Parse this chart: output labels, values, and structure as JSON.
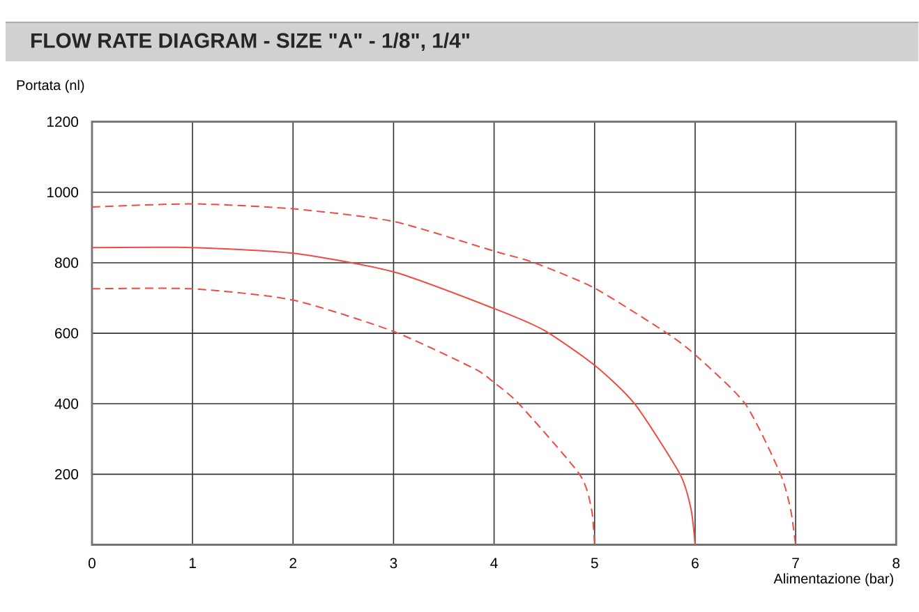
{
  "chart_data": {
    "type": "line",
    "title": "FLOW RATE DIAGRAM - SIZE \"A\" - 1/8\", 1/4\"",
    "xlabel": "Alimentazione (bar)",
    "ylabel": "Portata (nl)",
    "xlim": [
      0,
      8
    ],
    "ylim": [
      0,
      1200
    ],
    "xticks": [
      0,
      1,
      2,
      3,
      4,
      5,
      6,
      7,
      8
    ],
    "yticks": [
      200,
      400,
      600,
      800,
      1000,
      1200
    ],
    "grid": true,
    "marker": "none",
    "series": [
      {
        "color": "#ee4b43",
        "line_style": "dashed",
        "x": [
          0,
          1,
          2,
          3,
          4,
          4.4,
          5,
          5.72,
          6,
          6.5,
          6.85,
          6.95,
          7
        ],
        "values": [
          958,
          967,
          953,
          917,
          833,
          800,
          728,
          600,
          539,
          399,
          200,
          100,
          0
        ]
      },
      {
        "color": "#ee4b43",
        "line_style": "solid",
        "x": [
          0,
          1,
          2,
          3,
          4,
          4.5,
          5,
          5.4,
          5.85,
          5.96,
          6
        ],
        "values": [
          843,
          843,
          827,
          774,
          670,
          608,
          509,
          399,
          200,
          100,
          0
        ]
      },
      {
        "color": "#ee4b43",
        "line_style": "dashed",
        "x": [
          0,
          1,
          2,
          3,
          3.8,
          4,
          4.25,
          4.85,
          4.97,
          5
        ],
        "values": [
          726,
          726,
          694,
          605,
          500,
          460,
          399,
          200,
          100,
          0
        ]
      }
    ]
  }
}
